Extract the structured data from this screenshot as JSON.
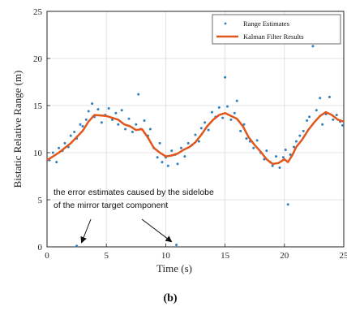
{
  "chart_data": {
    "type": "line",
    "xlabel": "Time (s)",
    "ylabel": "Bistatic Relative Range (m)",
    "xlim": [
      0,
      25
    ],
    "ylim": [
      0,
      25
    ],
    "xticks": [
      "0",
      "5",
      "10",
      "15",
      "20",
      "25"
    ],
    "yticks": [
      "0",
      "5",
      "10",
      "15",
      "20",
      "25"
    ],
    "grid": true,
    "legend_position": "top-right",
    "series": [
      {
        "name": "Range Estimates",
        "style": "scatter",
        "color": "#2f7fbf",
        "points": [
          [
            0.2,
            9.2
          ],
          [
            0.5,
            10.0
          ],
          [
            0.8,
            9.0
          ],
          [
            1.0,
            10.5
          ],
          [
            1.3,
            10.2
          ],
          [
            1.5,
            11.0
          ],
          [
            1.8,
            10.6
          ],
          [
            2.0,
            11.8
          ],
          [
            2.3,
            12.2
          ],
          [
            2.5,
            11.5
          ],
          [
            2.8,
            13.0
          ],
          [
            3.0,
            12.8
          ],
          [
            3.3,
            13.5
          ],
          [
            3.5,
            14.4
          ],
          [
            3.8,
            15.2
          ],
          [
            4.0,
            13.8
          ],
          [
            4.3,
            14.6
          ],
          [
            4.6,
            13.2
          ],
          [
            4.9,
            14.0
          ],
          [
            5.2,
            14.7
          ],
          [
            5.5,
            13.5
          ],
          [
            5.8,
            14.2
          ],
          [
            6.0,
            13.0
          ],
          [
            6.3,
            14.5
          ],
          [
            6.6,
            12.5
          ],
          [
            6.9,
            13.6
          ],
          [
            7.2,
            12.2
          ],
          [
            7.5,
            13.0
          ],
          [
            7.7,
            16.2
          ],
          [
            7.9,
            12.5
          ],
          [
            8.2,
            13.4
          ],
          [
            8.5,
            11.8
          ],
          [
            8.7,
            12.5
          ],
          [
            9.0,
            10.5
          ],
          [
            9.3,
            9.5
          ],
          [
            9.5,
            11.0
          ],
          [
            9.7,
            9.0
          ],
          [
            10.0,
            9.5
          ],
          [
            10.2,
            8.6
          ],
          [
            10.5,
            10.2
          ],
          [
            10.8,
            9.8
          ],
          [
            11.0,
            8.8
          ],
          [
            11.3,
            10.5
          ],
          [
            11.6,
            9.6
          ],
          [
            11.9,
            11.0
          ],
          [
            12.2,
            10.8
          ],
          [
            12.5,
            11.9
          ],
          [
            12.8,
            11.2
          ],
          [
            13.0,
            12.6
          ],
          [
            13.3,
            13.2
          ],
          [
            13.6,
            12.4
          ],
          [
            13.9,
            14.3
          ],
          [
            14.2,
            13.8
          ],
          [
            14.5,
            14.8
          ],
          [
            14.8,
            13.7
          ],
          [
            15.0,
            18.0
          ],
          [
            15.2,
            14.9
          ],
          [
            15.5,
            13.5
          ],
          [
            15.8,
            14.2
          ],
          [
            16.0,
            15.5
          ],
          [
            16.3,
            12.3
          ],
          [
            16.6,
            13.0
          ],
          [
            16.8,
            11.5
          ],
          [
            17.1,
            11.2
          ],
          [
            17.4,
            10.5
          ],
          [
            17.7,
            11.3
          ],
          [
            18.0,
            10.0
          ],
          [
            18.3,
            9.3
          ],
          [
            18.5,
            10.2
          ],
          [
            18.8,
            9.0
          ],
          [
            19.0,
            8.6
          ],
          [
            19.3,
            9.6
          ],
          [
            19.6,
            8.4
          ],
          [
            19.9,
            9.5
          ],
          [
            20.1,
            10.3
          ],
          [
            20.3,
            4.5
          ],
          [
            20.5,
            9.8
          ],
          [
            20.8,
            10.6
          ],
          [
            21.0,
            11.2
          ],
          [
            21.3,
            11.8
          ],
          [
            21.6,
            12.3
          ],
          [
            21.9,
            13.4
          ],
          [
            22.1,
            13.8
          ],
          [
            22.4,
            21.3
          ],
          [
            22.7,
            14.5
          ],
          [
            23.0,
            15.8
          ],
          [
            23.2,
            13.0
          ],
          [
            23.5,
            14.1
          ],
          [
            23.8,
            15.9
          ],
          [
            24.1,
            13.5
          ],
          [
            24.4,
            14.0
          ],
          [
            24.7,
            13.3
          ],
          [
            24.9,
            12.9
          ],
          [
            2.5,
            0.1
          ],
          [
            10.9,
            0.2
          ]
        ]
      },
      {
        "name": "Kalman Filter Results",
        "style": "line",
        "color": "#e0561c",
        "points": [
          [
            0,
            9.2
          ],
          [
            1.0,
            10.0
          ],
          [
            2.0,
            11.0
          ],
          [
            3.0,
            12.3
          ],
          [
            3.5,
            13.3
          ],
          [
            4.0,
            14.0
          ],
          [
            5.0,
            13.9
          ],
          [
            6.0,
            13.5
          ],
          [
            6.5,
            13.0
          ],
          [
            7.0,
            12.8
          ],
          [
            7.5,
            12.4
          ],
          [
            8.0,
            12.5
          ],
          [
            8.5,
            11.6
          ],
          [
            9.0,
            10.5
          ],
          [
            9.5,
            10.0
          ],
          [
            10.0,
            9.6
          ],
          [
            10.5,
            9.7
          ],
          [
            11.0,
            9.9
          ],
          [
            11.5,
            10.3
          ],
          [
            12.0,
            10.6
          ],
          [
            12.5,
            11.1
          ],
          [
            13.0,
            11.9
          ],
          [
            13.5,
            12.8
          ],
          [
            14.0,
            13.5
          ],
          [
            14.5,
            14.0
          ],
          [
            15.0,
            14.2
          ],
          [
            15.5,
            13.9
          ],
          [
            16.0,
            13.6
          ],
          [
            16.5,
            12.8
          ],
          [
            17.0,
            11.6
          ],
          [
            17.5,
            10.8
          ],
          [
            18.0,
            10.1
          ],
          [
            18.5,
            9.3
          ],
          [
            19.0,
            8.8
          ],
          [
            19.5,
            8.9
          ],
          [
            20.0,
            9.3
          ],
          [
            20.3,
            9.0
          ],
          [
            20.7,
            9.8
          ],
          [
            21.0,
            10.6
          ],
          [
            21.5,
            11.4
          ],
          [
            22.0,
            12.4
          ],
          [
            22.5,
            13.2
          ],
          [
            23.0,
            13.9
          ],
          [
            23.5,
            14.3
          ],
          [
            24.0,
            14.0
          ],
          [
            24.5,
            13.5
          ],
          [
            25.0,
            13.3
          ]
        ]
      }
    ],
    "annotation": {
      "lines": [
        "the error estimates caused by the sidelobe",
        "of the mirror target component"
      ],
      "arrow_targets": [
        [
          2.5,
          0.1
        ],
        [
          10.9,
          0.2
        ]
      ]
    }
  },
  "figure": {
    "sublabel": "(b)"
  }
}
